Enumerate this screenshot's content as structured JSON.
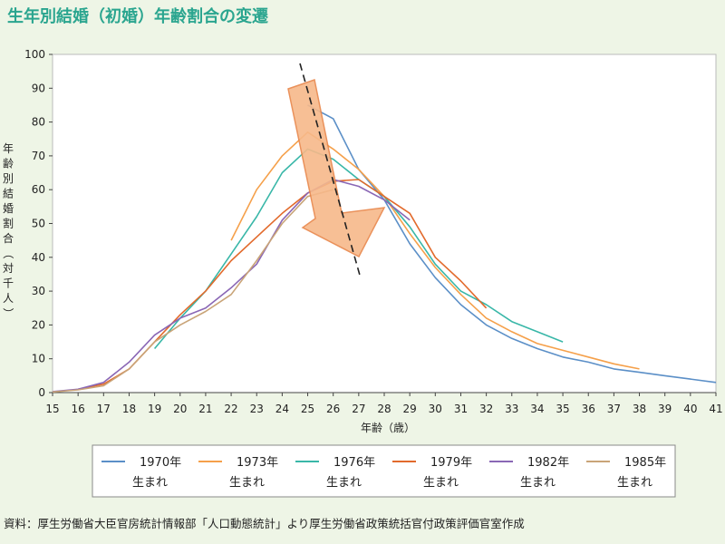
{
  "title": "生年別結婚（初婚）年齢割合の変遷",
  "source": "資料：厚生労働省大臣官房統計情報部「人口動態統計」より厚生労働省政策統括官付政策評価官室作成",
  "chart_data": {
    "type": "line",
    "title": "生年別結婚（初婚）年齢割合の変遷",
    "xlabel": "年齢（歳）",
    "ylabel": "年齢別結婚割合（対千人）",
    "xlim": [
      15,
      41
    ],
    "ylim": [
      0,
      100
    ],
    "x_ticks": [
      15,
      16,
      17,
      18,
      19,
      20,
      21,
      22,
      23,
      24,
      25,
      26,
      27,
      28,
      29,
      30,
      31,
      32,
      33,
      34,
      35,
      36,
      37,
      38,
      39,
      40,
      41
    ],
    "y_ticks": [
      0,
      10,
      20,
      30,
      40,
      50,
      60,
      70,
      80,
      90,
      100
    ],
    "grid": false,
    "legend_position": "bottom",
    "series": [
      {
        "name": "1970年生まれ",
        "label_line1": "1970年",
        "label_line2": "生まれ",
        "color": "#5b8fc7",
        "x": [
          25,
          26,
          27,
          28,
          29,
          30,
          31,
          32,
          33,
          34,
          35,
          36,
          37,
          38,
          39,
          40,
          41
        ],
        "y": [
          85,
          81,
          66,
          57,
          44,
          34,
          26,
          20,
          16,
          13,
          10.5,
          9,
          7,
          6,
          5,
          4,
          3
        ]
      },
      {
        "name": "1973年生まれ",
        "label_line1": "1973年",
        "label_line2": "生まれ",
        "color": "#f5a04a",
        "x": [
          22,
          23,
          24,
          25,
          26,
          27,
          28,
          29,
          30,
          31,
          32,
          33,
          34,
          35,
          36,
          37,
          38
        ],
        "y": [
          45,
          60,
          70,
          77,
          72,
          66,
          58,
          47,
          37,
          29,
          22,
          18,
          14.5,
          12.5,
          10.5,
          8.5,
          7
        ]
      },
      {
        "name": "1976年生まれ",
        "label_line1": "1976年",
        "label_line2": "生まれ",
        "color": "#39b7a8",
        "x": [
          19,
          20,
          21,
          22,
          23,
          24,
          25,
          26,
          27,
          28,
          29,
          30,
          31,
          32,
          33,
          34,
          35
        ],
        "y": [
          13,
          22,
          30,
          41,
          52,
          65,
          72,
          69,
          63,
          58,
          49,
          38,
          30,
          26,
          21,
          18,
          15
        ]
      },
      {
        "name": "1979年生まれ",
        "label_line1": "1979年",
        "label_line2": "生まれ",
        "color": "#e26a2c",
        "x": [
          16,
          17,
          18,
          19,
          20,
          21,
          22,
          23,
          24,
          25,
          26,
          27,
          28,
          29,
          30,
          31,
          32
        ],
        "y": [
          1,
          2.5,
          7,
          15,
          23,
          30,
          39,
          46,
          53,
          59,
          62.5,
          63,
          58,
          53,
          40,
          33,
          25
        ]
      },
      {
        "name": "1982年生まれ",
        "label_line1": "1982年",
        "label_line2": "生まれ",
        "color": "#8a67b5",
        "x": [
          15,
          16,
          17,
          18,
          19,
          20,
          21,
          22,
          23,
          24,
          25,
          26,
          27,
          28,
          29
        ],
        "y": [
          0.3,
          1,
          3,
          9,
          17,
          22,
          25,
          31,
          38,
          51,
          59,
          63,
          61,
          57,
          51
        ]
      },
      {
        "name": "1985年生まれ",
        "label_line1": "1985年",
        "label_line2": "生まれ",
        "color": "#c9a478",
        "x": [
          15,
          16,
          17,
          18,
          19,
          20,
          21,
          22,
          23,
          24,
          25,
          26
        ],
        "y": [
          0.2,
          0.8,
          2,
          7,
          15,
          20,
          24,
          29,
          39,
          50,
          58,
          60
        ]
      }
    ]
  }
}
